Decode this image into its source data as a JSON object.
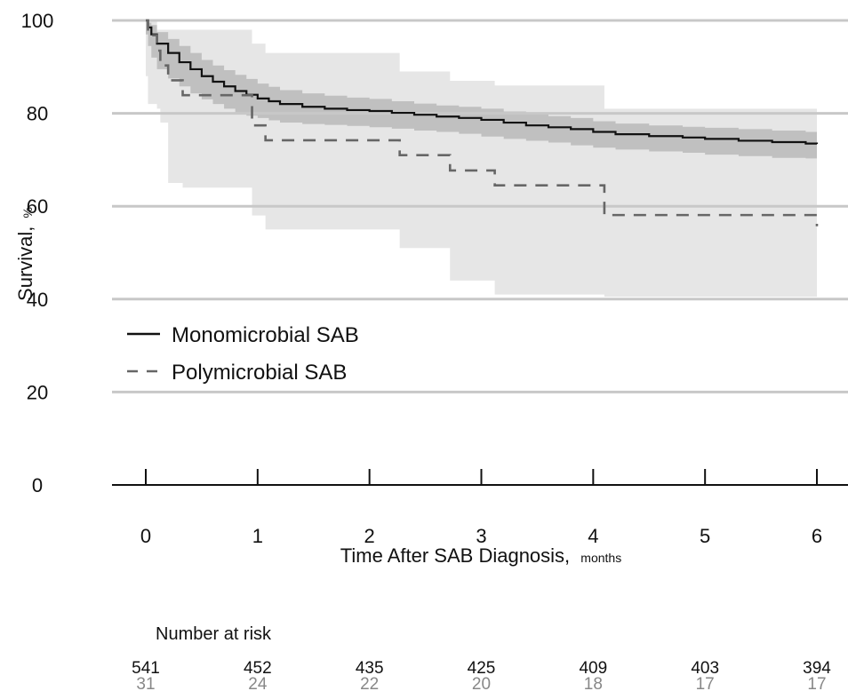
{
  "chart_data": {
    "type": "line",
    "subtype": "kaplan-meier",
    "title": "",
    "ylabel": "Survival,",
    "ylabel_unit": "%",
    "xlabel": "Time After SAB Diagnosis,",
    "xlabel_unit": "months",
    "xlim": [
      0,
      6
    ],
    "ylim": [
      0,
      100
    ],
    "x_ticks": [
      "0",
      "1",
      "2",
      "3",
      "4",
      "5",
      "6"
    ],
    "y_ticks": [
      "0",
      "20",
      "40",
      "60",
      "80",
      "100"
    ],
    "grid": "horizontal",
    "legend_position": "left-middle",
    "series": [
      {
        "name": "Monomicrobial SAB",
        "line_style": "solid",
        "color": "#111111",
        "ci_color": "#b3b3b3",
        "x": [
          0,
          0.02,
          0.05,
          0.1,
          0.2,
          0.3,
          0.4,
          0.5,
          0.6,
          0.7,
          0.8,
          0.9,
          1.0,
          1.1,
          1.2,
          1.4,
          1.6,
          1.8,
          2.0,
          2.2,
          2.4,
          2.6,
          2.8,
          3.0,
          3.2,
          3.4,
          3.6,
          3.8,
          4.0,
          4.2,
          4.5,
          4.8,
          5.0,
          5.3,
          5.6,
          5.9,
          6.0
        ],
        "y": [
          100,
          98.5,
          97,
          95,
          93,
          91,
          89.5,
          88,
          86.8,
          85.8,
          84.8,
          84,
          83.2,
          82.6,
          82,
          81.4,
          81,
          80.7,
          80.5,
          80.1,
          79.7,
          79.3,
          79,
          78.6,
          78,
          77.4,
          77,
          76.6,
          76,
          75.5,
          75.1,
          74.8,
          74.5,
          74.1,
          73.8,
          73.5,
          73.4
        ],
        "ci_upper": [
          100,
          99.5,
          99,
          97.5,
          96,
          94.5,
          93,
          91.5,
          90.3,
          89.3,
          88.3,
          87.4,
          86.4,
          85.7,
          85,
          84.3,
          83.8,
          83.4,
          83.1,
          82.6,
          82.1,
          81.7,
          81.4,
          81,
          80.4,
          79.8,
          79.4,
          79,
          78.3,
          77.8,
          77.4,
          77.1,
          76.9,
          76.6,
          76.3,
          76,
          76
        ],
        "ci_lower": [
          100,
          97,
          94.5,
          92,
          89.5,
          87.5,
          85.8,
          84.3,
          83,
          82,
          81,
          80.2,
          79.5,
          79,
          78.5,
          78,
          77.7,
          77.5,
          77.3,
          77,
          76.7,
          76.3,
          76,
          75.6,
          75,
          74.5,
          74.1,
          73.7,
          73.1,
          72.6,
          72.2,
          71.8,
          71.5,
          71.1,
          70.8,
          70.4,
          70.3
        ]
      },
      {
        "name": "Polymicrobial SAB",
        "line_style": "dashed",
        "color": "#666666",
        "ci_color": "#e6e6e6",
        "x": [
          0,
          0.02,
          0.1,
          0.13,
          0.2,
          0.33,
          0.95,
          1.07,
          2.27,
          2.72,
          3.12,
          4.1,
          6.0
        ],
        "y": [
          100,
          96.8,
          93.5,
          90.3,
          87.1,
          83.9,
          77.4,
          74.2,
          71,
          67.7,
          64.5,
          58.1,
          55.7
        ],
        "ci_upper": [
          100,
          100,
          98,
          98,
          98,
          98,
          95,
          93,
          89,
          87,
          86,
          81,
          77
        ],
        "ci_lower": [
          100,
          88,
          82,
          81,
          78,
          65,
          64,
          58,
          55,
          51,
          44,
          41,
          40.5
        ]
      }
    ],
    "risk_table": {
      "title": "Number at risk",
      "times": [
        0,
        1,
        2,
        3,
        4,
        5,
        6
      ],
      "rows": [
        {
          "name": "Monomicrobial SAB",
          "color": "#111111",
          "values": [
            "541",
            "452",
            "435",
            "425",
            "409",
            "403",
            "394"
          ]
        },
        {
          "name": "Polymicrobial SAB",
          "color": "#888888",
          "values": [
            "31",
            "24",
            "22",
            "20",
            "18",
            "17",
            "17"
          ]
        }
      ]
    }
  }
}
